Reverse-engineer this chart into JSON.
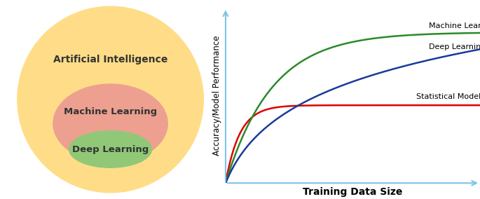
{
  "venn": {
    "ai_color": "#FFDD88",
    "ml_color": "#EDA090",
    "dl_color": "#90C878",
    "ai_label": "Artificial Intelligence",
    "ml_label": "Machine Learning",
    "dl_label": "Deep Learning",
    "label_color": "#333333",
    "ai_fontsize": 10,
    "ml_fontsize": 9.5,
    "dl_fontsize": 9.5
  },
  "chart": {
    "ylabel": "Accuracy/Model Performance",
    "xlabel": "Training Data Size",
    "xlabel_fontsize": 10,
    "ylabel_fontsize": 8.5,
    "axis_color": "#7DC4E8",
    "dl_color": "#1A3A9C",
    "ml_color": "#2A8A2A",
    "sm_color": "#DD0000",
    "dl_label": "Deep Learning",
    "ml_label": "Machine Learning",
    "sm_label": "Statistical Modeling",
    "label_fontsize": 8,
    "line_width": 1.8
  }
}
